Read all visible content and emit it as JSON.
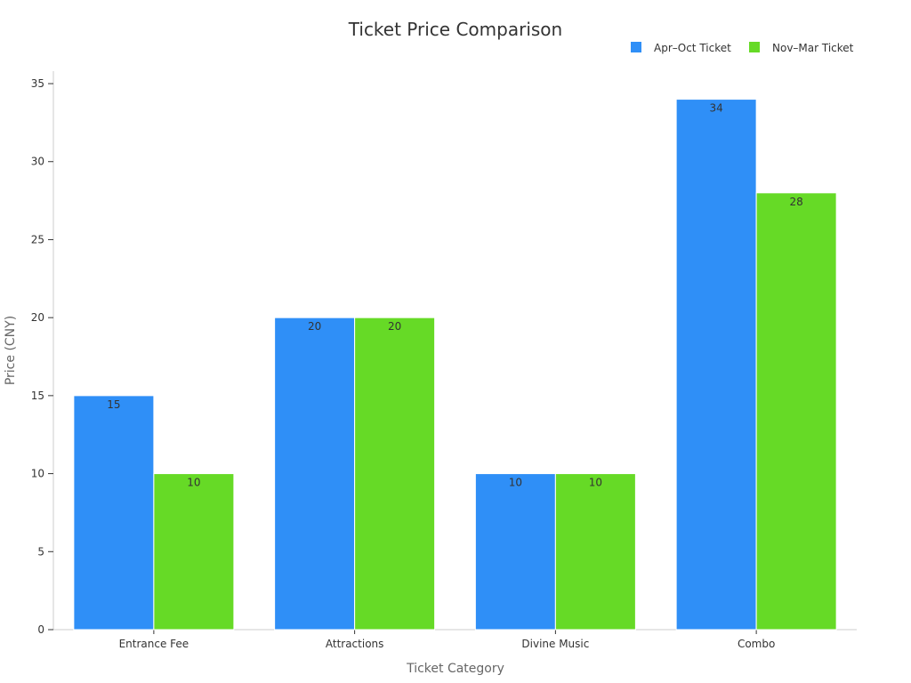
{
  "chart_data": {
    "type": "bar",
    "title": "Ticket Price Comparison",
    "xlabel": "Ticket Category",
    "ylabel": "Price (CNY)",
    "categories": [
      "Entrance Fee",
      "Attractions",
      "Divine Music",
      "Combo"
    ],
    "series": [
      {
        "name": "Apr–Oct Ticket",
        "color": "#2f8ff7",
        "values": [
          15,
          20,
          10,
          34
        ]
      },
      {
        "name": "Nov–Mar Ticket",
        "color": "#66da26",
        "values": [
          10,
          20,
          10,
          28
        ]
      }
    ],
    "ylim": [
      0,
      35
    ],
    "yticks": [
      0,
      5,
      10,
      15,
      20,
      25,
      30,
      35
    ],
    "legend_position": "top-right",
    "grid": false
  }
}
